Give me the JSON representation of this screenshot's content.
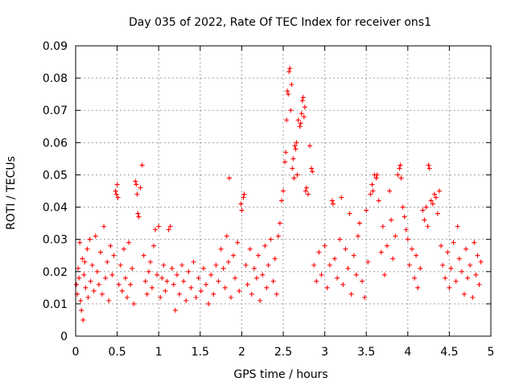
{
  "colors": {
    "series": "#ff0000",
    "grid": "#a0a0a0",
    "axis": "#000000",
    "background": "#ffffff"
  },
  "chart_data": {
    "type": "scatter",
    "title": "Day 035 of 2022, Rate Of TEC Index for receiver ons1",
    "xlabel": "GPS time / hours",
    "ylabel": "ROTI / TECUs",
    "xlim": [
      0,
      5
    ],
    "ylim": [
      0,
      0.09
    ],
    "x_ticks": [
      0,
      0.5,
      1,
      1.5,
      2,
      2.5,
      3,
      3.5,
      4,
      4.5,
      5
    ],
    "x_tick_labels": [
      "0",
      "0.5",
      "1",
      "1.5",
      "2",
      "2.5",
      "3",
      "3.5",
      "4",
      "4.5",
      "5"
    ],
    "y_ticks": [
      0,
      0.01,
      0.02,
      0.03,
      0.04,
      0.05,
      0.06,
      0.07,
      0.08,
      0.09
    ],
    "y_tick_labels": [
      "0",
      "0.01",
      "0.02",
      "0.03",
      "0.04",
      "0.05",
      "0.06",
      "0.07",
      "0.08",
      "0.09"
    ],
    "grid": true,
    "marker": "+",
    "series": [
      {
        "name": "ROTI",
        "note": "Dense scatter (~3000 samples, 0 to ~4.9 h); representative sample of readable points",
        "points": [
          [
            0.01,
            0.016
          ],
          [
            0.02,
            0.013
          ],
          [
            0.03,
            0.021
          ],
          [
            0.04,
            0.018
          ],
          [
            0.05,
            0.029
          ],
          [
            0.06,
            0.011
          ],
          [
            0.07,
            0.008
          ],
          [
            0.08,
            0.024
          ],
          [
            0.09,
            0.005
          ],
          [
            0.1,
            0.019
          ],
          [
            0.11,
            0.023
          ],
          [
            0.12,
            0.015
          ],
          [
            0.14,
            0.027
          ],
          [
            0.15,
            0.012
          ],
          [
            0.17,
            0.03
          ],
          [
            0.18,
            0.017
          ],
          [
            0.2,
            0.022
          ],
          [
            0.22,
            0.014
          ],
          [
            0.24,
            0.031
          ],
          [
            0.26,
            0.02
          ],
          [
            0.28,
            0.016
          ],
          [
            0.3,
            0.026
          ],
          [
            0.32,
            0.013
          ],
          [
            0.34,
            0.034
          ],
          [
            0.36,
            0.018
          ],
          [
            0.38,
            0.023
          ],
          [
            0.4,
            0.011
          ],
          [
            0.42,
            0.028
          ],
          [
            0.44,
            0.019
          ],
          [
            0.46,
            0.025
          ],
          [
            0.48,
            0.045
          ],
          [
            0.49,
            0.044
          ],
          [
            0.5,
            0.047
          ],
          [
            0.51,
            0.043
          ],
          [
            0.52,
            0.016
          ],
          [
            0.54,
            0.022
          ],
          [
            0.56,
            0.014
          ],
          [
            0.58,
            0.027
          ],
          [
            0.6,
            0.018
          ],
          [
            0.62,
            0.012
          ],
          [
            0.64,
            0.029
          ],
          [
            0.66,
            0.016
          ],
          [
            0.68,
            0.021
          ],
          [
            0.7,
            0.01
          ],
          [
            0.72,
            0.048
          ],
          [
            0.73,
            0.047
          ],
          [
            0.74,
            0.044
          ],
          [
            0.75,
            0.038
          ],
          [
            0.76,
            0.037
          ],
          [
            0.78,
            0.046
          ],
          [
            0.8,
            0.053
          ],
          [
            0.82,
            0.025
          ],
          [
            0.84,
            0.017
          ],
          [
            0.86,
            0.013
          ],
          [
            0.88,
            0.02
          ],
          [
            0.9,
            0.023
          ],
          [
            0.92,
            0.015
          ],
          [
            0.94,
            0.028
          ],
          [
            0.96,
            0.033
          ],
          [
            0.98,
            0.019
          ],
          [
            1.0,
            0.034
          ],
          [
            1.02,
            0.012
          ],
          [
            1.04,
            0.018
          ],
          [
            1.06,
            0.022
          ],
          [
            1.08,
            0.014
          ],
          [
            1.1,
            0.017
          ],
          [
            1.12,
            0.033
          ],
          [
            1.14,
            0.034
          ],
          [
            1.16,
            0.021
          ],
          [
            1.18,
            0.016
          ],
          [
            1.2,
            0.008
          ],
          [
            1.22,
            0.019
          ],
          [
            1.25,
            0.013
          ],
          [
            1.28,
            0.022
          ],
          [
            1.3,
            0.017
          ],
          [
            1.33,
            0.011
          ],
          [
            1.36,
            0.02
          ],
          [
            1.39,
            0.015
          ],
          [
            1.42,
            0.023
          ],
          [
            1.45,
            0.012
          ],
          [
            1.48,
            0.018
          ],
          [
            1.51,
            0.014
          ],
          [
            1.54,
            0.021
          ],
          [
            1.57,
            0.016
          ],
          [
            1.6,
            0.01
          ],
          [
            1.63,
            0.019
          ],
          [
            1.66,
            0.013
          ],
          [
            1.69,
            0.022
          ],
          [
            1.72,
            0.017
          ],
          [
            1.75,
            0.027
          ],
          [
            1.78,
            0.021
          ],
          [
            1.8,
            0.015
          ],
          [
            1.82,
            0.031
          ],
          [
            1.84,
            0.023
          ],
          [
            1.85,
            0.049
          ],
          [
            1.87,
            0.012
          ],
          [
            1.9,
            0.025
          ],
          [
            1.92,
            0.018
          ],
          [
            1.95,
            0.029
          ],
          [
            1.97,
            0.014
          ],
          [
            1.99,
            0.041
          ],
          [
            2.0,
            0.039
          ],
          [
            2.02,
            0.043
          ],
          [
            2.03,
            0.044
          ],
          [
            2.05,
            0.022
          ],
          [
            2.07,
            0.016
          ],
          [
            2.1,
            0.027
          ],
          [
            2.12,
            0.013
          ],
          [
            2.15,
            0.021
          ],
          [
            2.18,
            0.018
          ],
          [
            2.2,
            0.025
          ],
          [
            2.22,
            0.011
          ],
          [
            2.25,
            0.019
          ],
          [
            2.28,
            0.028
          ],
          [
            2.3,
            0.015
          ],
          [
            2.32,
            0.022
          ],
          [
            2.35,
            0.03
          ],
          [
            2.38,
            0.017
          ],
          [
            2.4,
            0.024
          ],
          [
            2.42,
            0.013
          ],
          [
            2.44,
            0.031
          ],
          [
            2.46,
            0.035
          ],
          [
            2.48,
            0.042
          ],
          [
            2.5,
            0.045
          ],
          [
            2.52,
            0.054
          ],
          [
            2.53,
            0.057
          ],
          [
            2.54,
            0.067
          ],
          [
            2.55,
            0.076
          ],
          [
            2.56,
            0.075
          ],
          [
            2.57,
            0.082
          ],
          [
            2.58,
            0.083
          ],
          [
            2.59,
            0.07
          ],
          [
            2.6,
            0.078
          ],
          [
            2.61,
            0.052
          ],
          [
            2.62,
            0.055
          ],
          [
            2.63,
            0.049
          ],
          [
            2.64,
            0.059
          ],
          [
            2.65,
            0.058
          ],
          [
            2.66,
            0.06
          ],
          [
            2.67,
            0.05
          ],
          [
            2.68,
            0.067
          ],
          [
            2.7,
            0.065
          ],
          [
            2.71,
            0.066
          ],
          [
            2.72,
            0.069
          ],
          [
            2.73,
            0.073
          ],
          [
            2.74,
            0.074
          ],
          [
            2.75,
            0.068
          ],
          [
            2.76,
            0.071
          ],
          [
            2.77,
            0.045
          ],
          [
            2.78,
            0.046
          ],
          [
            2.8,
            0.044
          ],
          [
            2.82,
            0.059
          ],
          [
            2.84,
            0.052
          ],
          [
            2.85,
            0.051
          ],
          [
            2.87,
            0.022
          ],
          [
            2.9,
            0.017
          ],
          [
            2.93,
            0.026
          ],
          [
            2.96,
            0.019
          ],
          [
            3.0,
            0.028
          ],
          [
            3.03,
            0.015
          ],
          [
            3.06,
            0.022
          ],
          [
            3.09,
            0.042
          ],
          [
            3.1,
            0.041
          ],
          [
            3.12,
            0.024
          ],
          [
            3.15,
            0.018
          ],
          [
            3.18,
            0.03
          ],
          [
            3.2,
            0.043
          ],
          [
            3.22,
            0.016
          ],
          [
            3.25,
            0.027
          ],
          [
            3.28,
            0.021
          ],
          [
            3.3,
            0.038
          ],
          [
            3.32,
            0.013
          ],
          [
            3.35,
            0.025
          ],
          [
            3.38,
            0.019
          ],
          [
            3.4,
            0.031
          ],
          [
            3.42,
            0.035
          ],
          [
            3.45,
            0.017
          ],
          [
            3.48,
            0.012
          ],
          [
            3.5,
            0.039
          ],
          [
            3.52,
            0.023
          ],
          [
            3.55,
            0.044
          ],
          [
            3.57,
            0.047
          ],
          [
            3.58,
            0.045
          ],
          [
            3.6,
            0.05
          ],
          [
            3.62,
            0.049
          ],
          [
            3.63,
            0.05
          ],
          [
            3.65,
            0.042
          ],
          [
            3.68,
            0.026
          ],
          [
            3.7,
            0.034
          ],
          [
            3.72,
            0.019
          ],
          [
            3.75,
            0.028
          ],
          [
            3.78,
            0.045
          ],
          [
            3.8,
            0.036
          ],
          [
            3.82,
            0.024
          ],
          [
            3.85,
            0.031
          ],
          [
            3.88,
            0.05
          ],
          [
            3.9,
            0.052
          ],
          [
            3.91,
            0.053
          ],
          [
            3.92,
            0.049
          ],
          [
            3.94,
            0.04
          ],
          [
            3.96,
            0.037
          ],
          [
            3.98,
            0.033
          ],
          [
            4.0,
            0.03
          ],
          [
            4.02,
            0.022
          ],
          [
            4.05,
            0.027
          ],
          [
            4.08,
            0.018
          ],
          [
            4.1,
            0.025
          ],
          [
            4.12,
            0.015
          ],
          [
            4.15,
            0.021
          ],
          [
            4.18,
            0.039
          ],
          [
            4.2,
            0.036
          ],
          [
            4.22,
            0.04
          ],
          [
            4.24,
            0.034
          ],
          [
            4.25,
            0.053
          ],
          [
            4.26,
            0.052
          ],
          [
            4.28,
            0.042
          ],
          [
            4.3,
            0.041
          ],
          [
            4.32,
            0.044
          ],
          [
            4.34,
            0.043
          ],
          [
            4.36,
            0.038
          ],
          [
            4.38,
            0.045
          ],
          [
            4.4,
            0.028
          ],
          [
            4.42,
            0.022
          ],
          [
            4.45,
            0.018
          ],
          [
            4.48,
            0.026
          ],
          [
            4.5,
            0.015
          ],
          [
            4.52,
            0.021
          ],
          [
            4.55,
            0.029
          ],
          [
            4.58,
            0.017
          ],
          [
            4.6,
            0.034
          ],
          [
            4.62,
            0.024
          ],
          [
            4.65,
            0.02
          ],
          [
            4.68,
            0.013
          ],
          [
            4.7,
            0.027
          ],
          [
            4.72,
            0.018
          ],
          [
            4.75,
            0.022
          ],
          [
            4.78,
            0.012
          ],
          [
            4.8,
            0.029
          ],
          [
            4.82,
            0.019
          ],
          [
            4.84,
            0.025
          ],
          [
            4.86,
            0.016
          ],
          [
            4.88,
            0.023
          ]
        ]
      }
    ]
  }
}
